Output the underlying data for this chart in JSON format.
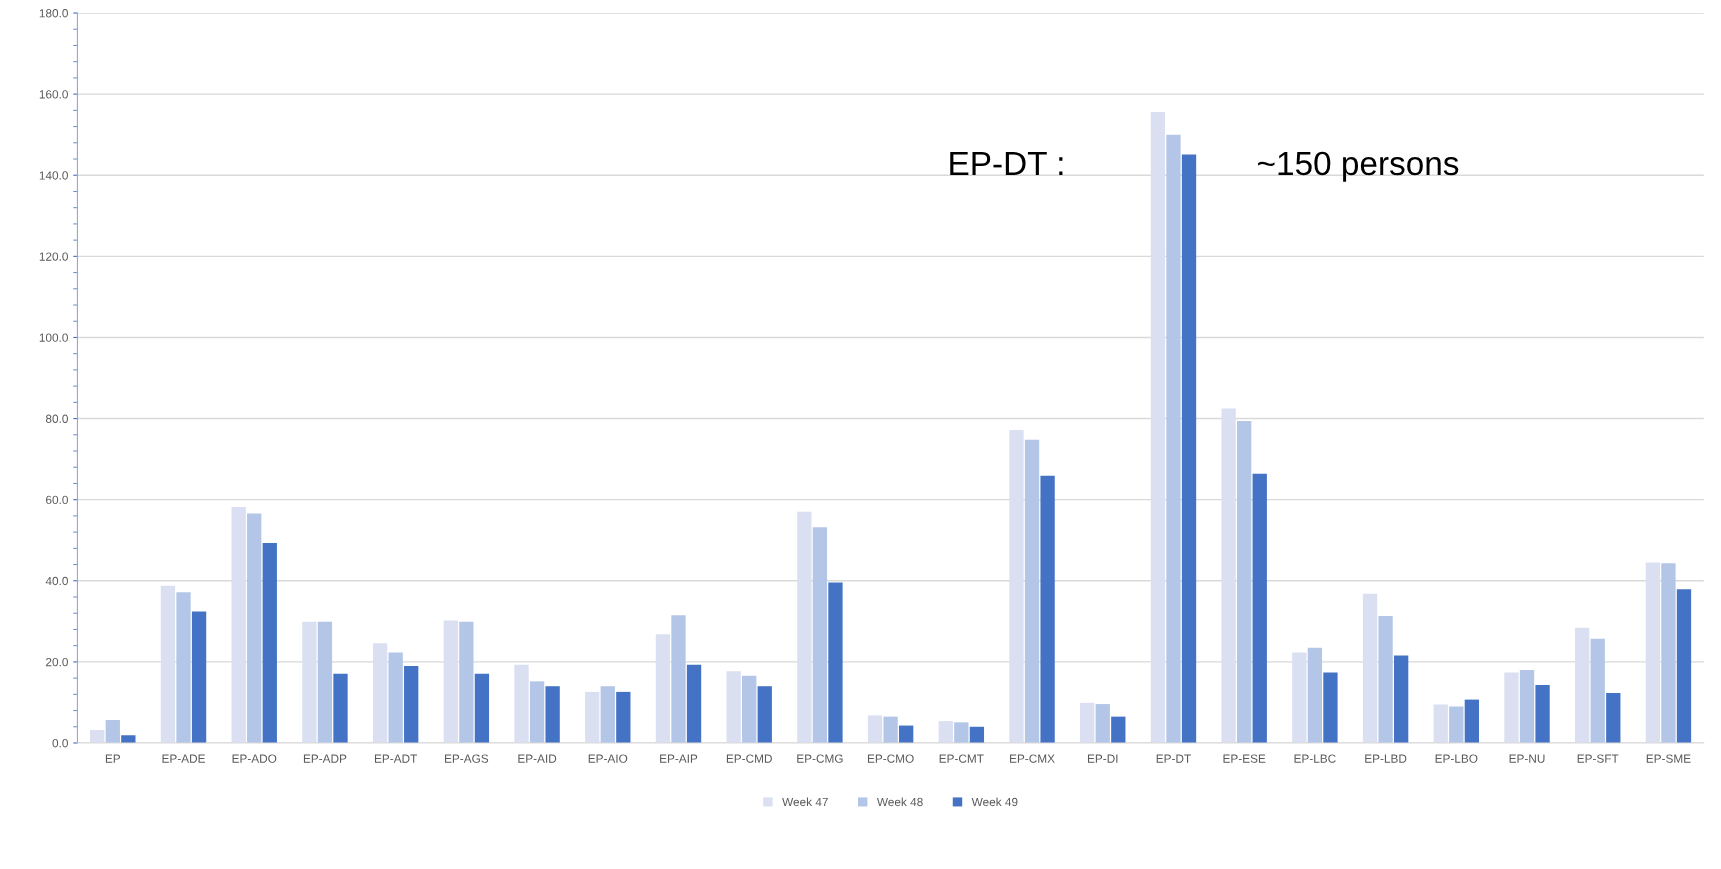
{
  "chart_data": {
    "type": "bar",
    "categories": [
      "EP",
      "EP-ADE",
      "EP-ADO",
      "EP-ADP",
      "EP-ADT",
      "EP-AGS",
      "EP-AID",
      "EP-AIO",
      "EP-AIP",
      "EP-CMD",
      "EP-CMG",
      "EP-CMO",
      "EP-CMT",
      "EP-CMX",
      "EP-DI",
      "EP-DT",
      "EP-ESE",
      "EP-LBC",
      "EP-LBD",
      "EP-LBO",
      "EP-NU",
      "EP-SFT",
      "EP-SME"
    ],
    "series": [
      {
        "name": "Week 47",
        "color": "#dae0f2",
        "values": [
          3.2,
          38.8,
          58.2,
          29.9,
          24.6,
          30.2,
          19.3,
          12.6,
          26.8,
          17.7,
          57.0,
          6.8,
          5.4,
          77.2,
          9.9,
          155.6,
          82.5,
          22.3,
          36.8,
          9.5,
          17.4,
          28.4,
          44.5
        ]
      },
      {
        "name": "Week 48",
        "color": "#b3c6e7",
        "values": [
          5.7,
          37.2,
          56.6,
          29.9,
          22.3,
          29.9,
          15.2,
          14.0,
          31.5,
          16.6,
          53.2,
          6.5,
          5.1,
          74.8,
          9.6,
          150.0,
          79.4,
          23.5,
          31.3,
          9.0,
          18.0,
          25.7,
          44.3
        ]
      },
      {
        "name": "Week 49",
        "color": "#4472c4",
        "values": [
          1.9,
          32.4,
          49.3,
          17.1,
          19.0,
          17.1,
          14.0,
          12.6,
          19.3,
          14.0,
          39.6,
          4.3,
          4.0,
          65.9,
          6.5,
          145.1,
          66.4,
          17.4,
          21.6,
          10.7,
          14.3,
          12.3,
          37.9
        ]
      }
    ],
    "ylim": [
      0,
      180
    ],
    "yticks": [
      {
        "value": 0,
        "label": "0.0"
      },
      {
        "value": 20,
        "label": "20.0"
      },
      {
        "value": 40,
        "label": "40.0"
      },
      {
        "value": 60,
        "label": "60.0"
      },
      {
        "value": 80,
        "label": "80.0"
      },
      {
        "value": 100,
        "label": "100.0"
      },
      {
        "value": 120,
        "label": "120.0"
      },
      {
        "value": 140,
        "label": "140.0"
      },
      {
        "value": 160,
        "label": "160.0"
      },
      {
        "value": 180,
        "label": "180.0"
      }
    ],
    "grid": "y",
    "legend": "bottom",
    "annotations": [
      "EP-DT :",
      "~150 persons"
    ]
  }
}
